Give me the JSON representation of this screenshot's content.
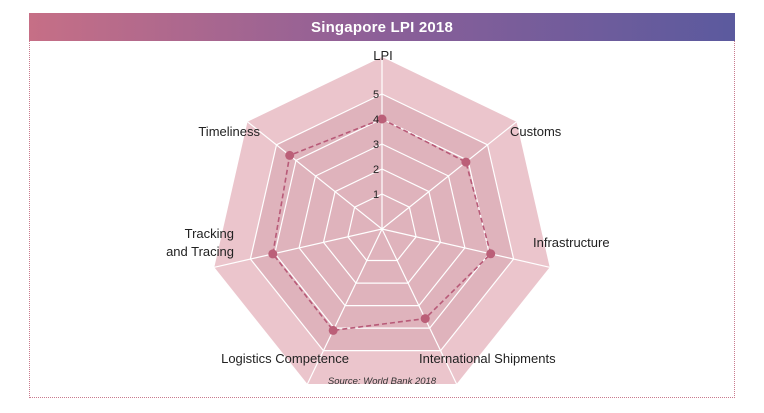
{
  "chart_data": {
    "type": "radar",
    "title": "Singapore LPI 2018",
    "axes": [
      "LPI",
      "Customs",
      "Infrastructure",
      "International Shipments",
      "Logistics Competence",
      "Tracking\nand Tracing",
      "Timeliness"
    ],
    "series": [
      {
        "values": [
          4.0,
          3.89,
          4.06,
          3.58,
          4.1,
          4.08,
          4.32
        ]
      }
    ],
    "r_ticks": [
      "1",
      "2",
      "3",
      "4",
      "5"
    ],
    "r_range": [
      0,
      5
    ],
    "source": "Source: World Bank 2018"
  },
  "colors": {
    "outer_fill": "#ebc5cc",
    "inner_fill": "#dfb3bc",
    "grid": "#ffffff",
    "series_line": "#b85a78",
    "series_marker": "#bb5f78",
    "title_gradient_start": "#c66f86",
    "title_gradient_end": "#5b5a9e"
  }
}
